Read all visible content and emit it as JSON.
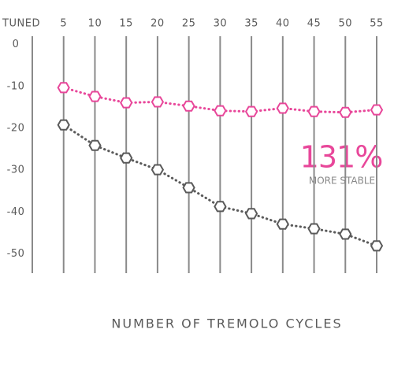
{
  "chart_data": {
    "type": "line",
    "x_label": "NUMBER OF TREMOLO CYCLES",
    "x": [
      5,
      10,
      15,
      20,
      25,
      30,
      35,
      40,
      45,
      50,
      55
    ],
    "series": [
      {
        "color": "#e8479a",
        "values": [
          -10.3,
          -12.4,
          -13.9,
          -13.7,
          -14.7,
          -15.8,
          -16,
          -15.2,
          -16,
          -16.2,
          -15.6
        ]
      },
      {
        "color": "#5a5a5a",
        "values": [
          -19.2,
          -24.1,
          -27.1,
          -29.9,
          -34.2,
          -38.7,
          -40.4,
          -42.9,
          -44,
          -45.3,
          -48.1
        ]
      }
    ],
    "xlim": [
      0,
      55
    ],
    "xticks": [
      {
        "value": 0,
        "label": "TUNED"
      },
      5,
      10,
      15,
      20,
      25,
      30,
      35,
      40,
      45,
      50,
      55
    ],
    "ylim": [
      -55,
      2
    ],
    "yticks": [
      0,
      -10,
      -20,
      -30,
      -40,
      -50
    ],
    "grid": true,
    "annotations": [
      "131%",
      "MORE STABLE"
    ]
  }
}
